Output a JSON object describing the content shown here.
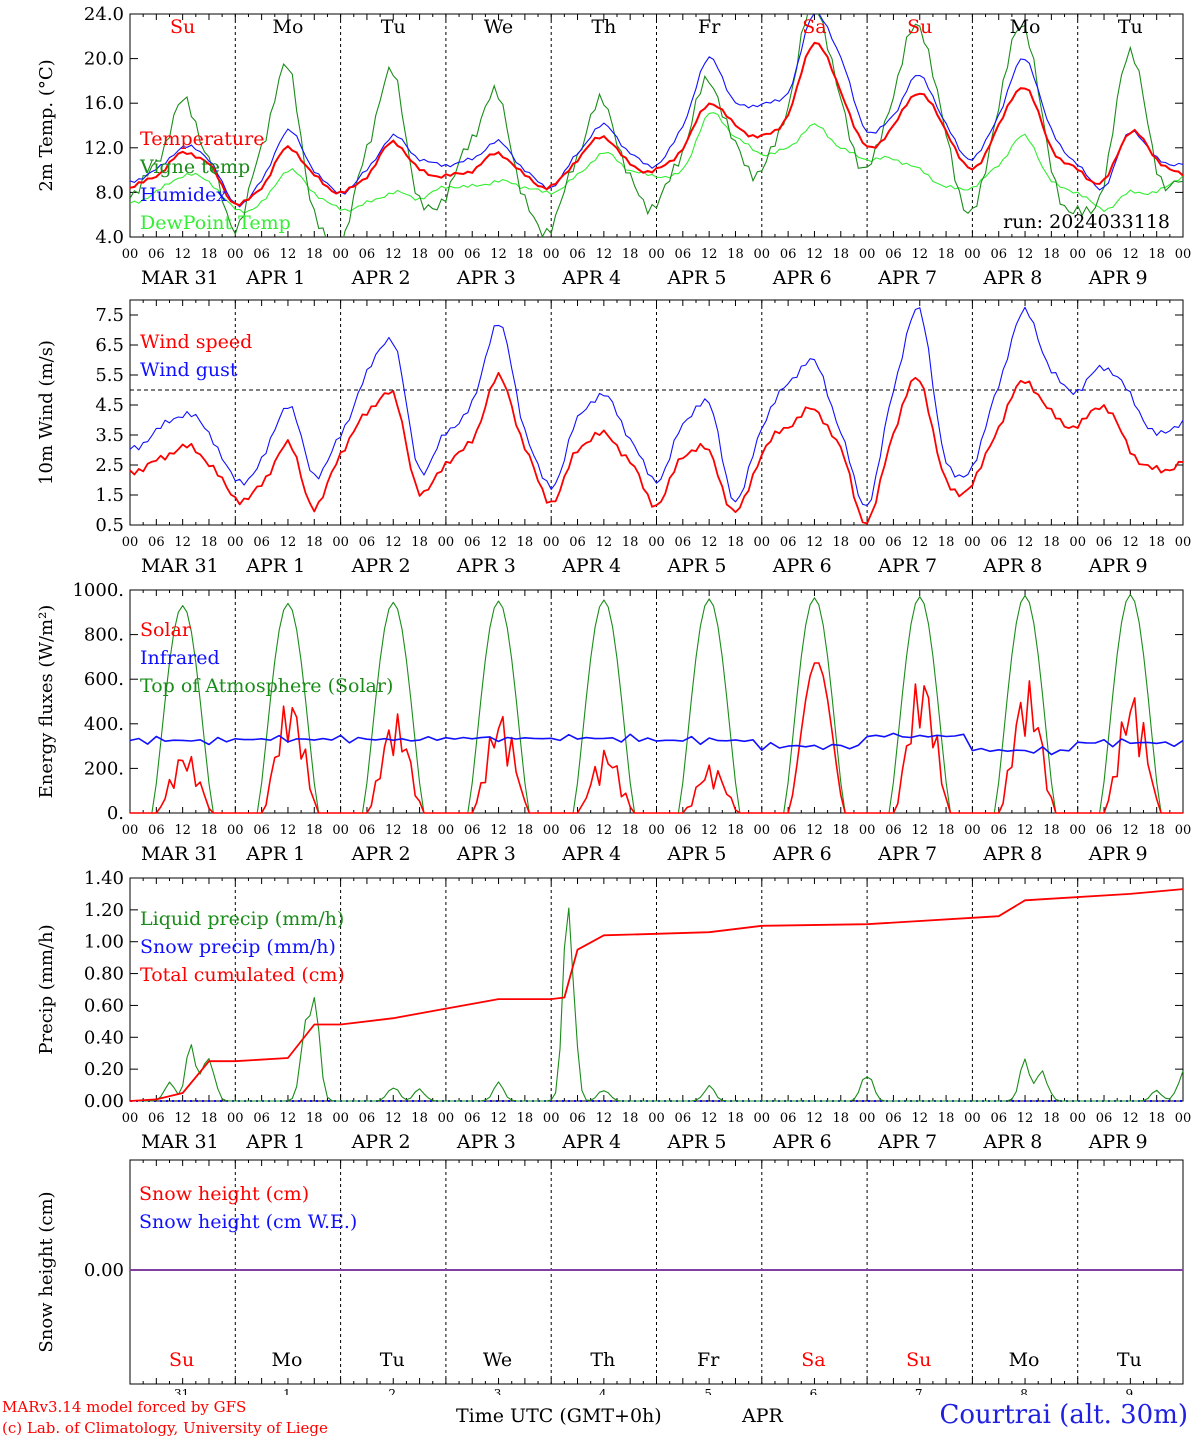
{
  "run_label": "run: 2024033118",
  "day_names": [
    "Su",
    "Mo",
    "Tu",
    "We",
    "Th",
    "Fr",
    "Sa",
    "Su",
    "Mo",
    "Tu"
  ],
  "weekend_days": [
    0,
    6,
    7
  ],
  "date_labels": [
    "MAR 31",
    "APR  1",
    "APR  2",
    "APR  3",
    "APR  4",
    "APR  5",
    "APR  6",
    "APR  7",
    "APR  8",
    "APR  9"
  ],
  "bottom_day_numbers": [
    "31",
    "1",
    "2",
    "3",
    "4",
    "5",
    "6",
    "7",
    "8",
    "9"
  ],
  "hour_ticks": [
    "00",
    "06",
    "12",
    "18"
  ],
  "footer": {
    "model": "MARv3.14 model forced by GFS",
    "credit": "(c) Lab. of Climatology, University of Liege",
    "time_label": "Time UTC (GMT+0h)",
    "month": "APR",
    "site": "Courtrai (alt. 30m)"
  },
  "colors": {
    "red": "#ff0000",
    "blue": "#1010ff",
    "green": "#1a8c1a",
    "light_green": "#33ee33",
    "purple": "#8040a0"
  },
  "chart_data": [
    {
      "type": "line",
      "ylabel": "2m Temp. (°C)",
      "ylim": [
        4,
        24
      ],
      "yticks": [
        "4.0",
        "8.0",
        "12.0",
        "16.0",
        "20.0",
        "24.0"
      ],
      "x_hours": [
        0,
        6,
        12,
        18,
        24,
        30,
        36,
        42,
        48,
        54,
        60,
        66,
        72,
        78,
        84,
        90,
        96,
        102,
        108,
        114,
        120,
        126,
        132,
        138,
        144,
        150,
        156,
        162,
        168,
        174,
        180,
        186,
        192,
        198,
        204,
        210,
        216,
        222,
        228,
        234,
        240
      ],
      "series": [
        {
          "name": "Temperature",
          "color": "red",
          "values": [
            8.5,
            9.5,
            11.5,
            10.5,
            7.0,
            8.5,
            12.0,
            9.5,
            8.0,
            9.5,
            12.5,
            10.0,
            9.5,
            10.0,
            11.5,
            9.5,
            8.5,
            11.0,
            13.0,
            10.5,
            10.0,
            12.0,
            16.0,
            14.0,
            13.0,
            15.0,
            21.5,
            17.0,
            12.0,
            14.0,
            17.0,
            13.5,
            10.0,
            14.0,
            17.5,
            12.0,
            10.0,
            9.0,
            13.5,
            11.0,
            9.5
          ]
        },
        {
          "name": "Vigne temp",
          "color": "green",
          "values": [
            8.0,
            10.5,
            16.0,
            11.0,
            5.0,
            12.0,
            19.0,
            6.0,
            3.5,
            12.0,
            18.5,
            7.0,
            8.0,
            13.0,
            16.5,
            7.0,
            5.0,
            11.5,
            16.0,
            9.0,
            7.0,
            12.0,
            18.0,
            12.0,
            10.0,
            16.0,
            25.0,
            16.0,
            10.0,
            17.0,
            23.0,
            13.0,
            6.0,
            16.0,
            23.0,
            10.0,
            6.0,
            9.0,
            21.0,
            10.0,
            9.0
          ]
        },
        {
          "name": "Humidex",
          "color": "blue",
          "values": [
            9.0,
            10.0,
            12.0,
            11.0,
            7.0,
            9.0,
            13.5,
            10.0,
            8.0,
            10.0,
            13.0,
            11.0,
            10.5,
            11.0,
            12.5,
            10.0,
            8.5,
            11.5,
            14.0,
            11.5,
            10.5,
            14.0,
            20.0,
            16.0,
            16.0,
            17.0,
            24.0,
            20.0,
            13.5,
            15.0,
            18.5,
            14.0,
            11.0,
            15.0,
            20.0,
            13.5,
            10.5,
            8.5,
            13.5,
            11.0,
            10.5
          ]
        },
        {
          "name": "DewPoint Temp",
          "color": "light_green",
          "values": [
            7.0,
            8.0,
            9.5,
            9.0,
            6.5,
            7.0,
            10.0,
            8.0,
            6.5,
            7.0,
            8.0,
            7.5,
            8.5,
            8.5,
            9.0,
            8.5,
            8.0,
            9.5,
            11.5,
            10.0,
            9.5,
            10.0,
            15.0,
            13.0,
            11.5,
            12.0,
            14.0,
            12.0,
            11.0,
            11.0,
            10.0,
            8.5,
            8.5,
            10.5,
            13.0,
            9.0,
            8.0,
            6.5,
            8.0,
            8.0,
            9.5
          ]
        }
      ]
    },
    {
      "type": "line",
      "ylabel": "10m Wind (m/s)",
      "ylim": [
        0.5,
        8.0
      ],
      "yticks": [
        "0.5",
        "1.5",
        "2.5",
        "3.5",
        "4.5",
        "5.5",
        "6.5",
        "7.5"
      ],
      "reference_line": 5.0,
      "x_hours": [
        0,
        6,
        12,
        18,
        24,
        30,
        36,
        42,
        48,
        54,
        60,
        66,
        72,
        78,
        84,
        90,
        96,
        102,
        108,
        114,
        120,
        126,
        132,
        138,
        144,
        150,
        156,
        162,
        168,
        174,
        180,
        186,
        192,
        198,
        204,
        210,
        216,
        222,
        228,
        234,
        240
      ],
      "series": [
        {
          "name": "Wind speed",
          "color": "red",
          "values": [
            2.3,
            2.6,
            3.1,
            2.6,
            1.4,
            1.8,
            3.2,
            1.1,
            2.9,
            4.2,
            4.8,
            1.6,
            2.6,
            3.3,
            5.4,
            3.1,
            1.3,
            3.0,
            3.5,
            2.6,
            1.2,
            2.8,
            2.9,
            0.9,
            2.9,
            3.8,
            4.3,
            3.0,
            0.6,
            3.6,
            5.3,
            1.9,
            1.9,
            3.8,
            5.3,
            4.2,
            3.8,
            4.5,
            3.0,
            2.3,
            2.6
          ]
        },
        {
          "name": "Wind gust",
          "color": "blue",
          "values": [
            3.0,
            3.6,
            4.2,
            3.6,
            2.0,
            2.6,
            4.5,
            2.2,
            3.5,
            5.5,
            6.6,
            2.4,
            3.6,
            4.5,
            7.2,
            3.7,
            1.8,
            4.0,
            4.8,
            3.4,
            2.0,
            3.8,
            4.5,
            1.3,
            3.8,
            5.2,
            5.9,
            3.6,
            1.2,
            5.0,
            7.6,
            2.6,
            2.5,
            5.2,
            7.6,
            5.6,
            5.0,
            5.8,
            4.8,
            3.5,
            4.0
          ]
        }
      ]
    },
    {
      "type": "line",
      "ylabel": "Energy fluxes (W/m²)",
      "ylim": [
        0,
        1000
      ],
      "yticks": [
        "0.",
        "200.",
        "400.",
        "600.",
        "800.",
        "1000."
      ],
      "series": [
        {
          "name": "Solar",
          "color": "red",
          "day_peaks": [
            280,
            530,
            450,
            460,
            290,
            220,
            680,
            640,
            600,
            550
          ]
        },
        {
          "name": "Infrared",
          "color": "blue",
          "day_levels": [
            325,
            330,
            330,
            335,
            335,
            325,
            300,
            345,
            280,
            315
          ]
        },
        {
          "name": "Top of Atmosphere (Solar)",
          "color": "green",
          "day_peaks": [
            930,
            940,
            945,
            950,
            955,
            960,
            965,
            970,
            975,
            980
          ]
        }
      ]
    },
    {
      "type": "line",
      "ylabel": "Precip (mm/h)",
      "ylim": [
        0,
        1.4
      ],
      "yticks": [
        "0.00",
        "0.20",
        "0.40",
        "0.60",
        "0.80",
        "1.00",
        "1.20",
        "1.40"
      ],
      "series": [
        {
          "name": "Liquid precip (mm/h)",
          "color": "green",
          "events": [
            [
              9,
              0.12
            ],
            [
              14,
              0.38
            ],
            [
              18,
              0.3
            ],
            [
              40,
              0.38
            ],
            [
              42,
              0.6
            ],
            [
              60,
              0.1
            ],
            [
              66,
              0.08
            ],
            [
              84,
              0.12
            ],
            [
              100,
              1.34
            ],
            [
              108,
              0.08
            ],
            [
              132,
              0.1
            ],
            [
              168,
              0.2
            ],
            [
              204,
              0.27
            ],
            [
              208,
              0.2
            ],
            [
              234,
              0.07
            ],
            [
              240,
              0.2
            ]
          ]
        },
        {
          "name": "Snow precip (mm/h)",
          "color": "blue",
          "values": [
            0.0
          ]
        },
        {
          "name": "Total cumulated (cm)",
          "color": "red",
          "x_hours": [
            0,
            6,
            12,
            18,
            24,
            36,
            42,
            48,
            60,
            72,
            84,
            96,
            99,
            102,
            108,
            120,
            132,
            144,
            168,
            192,
            198,
            204,
            210,
            228,
            240
          ],
          "values": [
            0.0,
            0.01,
            0.05,
            0.25,
            0.25,
            0.27,
            0.48,
            0.48,
            0.52,
            0.58,
            0.64,
            0.64,
            0.65,
            0.95,
            1.04,
            1.05,
            1.06,
            1.1,
            1.11,
            1.15,
            1.16,
            1.26,
            1.27,
            1.3,
            1.33
          ]
        }
      ]
    },
    {
      "type": "line",
      "ylabel": "Snow height (cm)",
      "yticks": [
        "0.00"
      ],
      "series": [
        {
          "name": "Snow height (cm)",
          "color": "red",
          "values": [
            0.0
          ]
        },
        {
          "name": "Snow height (cm W.E.)",
          "color": "blue",
          "values": [
            0.0
          ]
        }
      ]
    }
  ]
}
